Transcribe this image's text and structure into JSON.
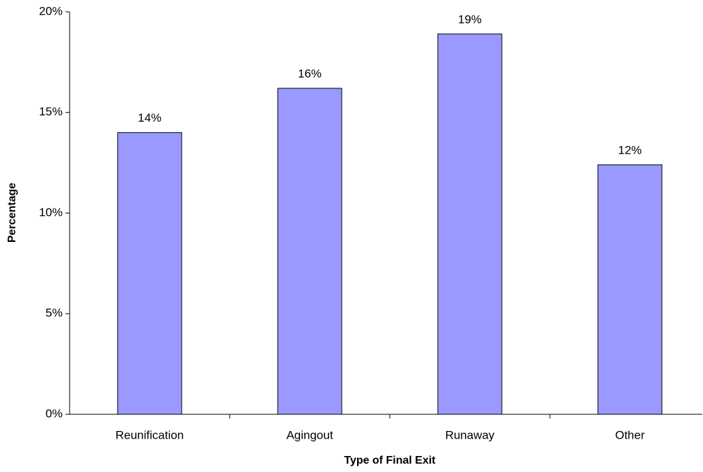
{
  "chart_data": {
    "type": "bar",
    "x_label": "Type of Final Exit",
    "y_label": "Percentage",
    "categories": [
      "Reunification",
      "Agingout",
      "Runaway",
      "Other"
    ],
    "values": [
      14.0,
      16.2,
      18.9,
      12.4
    ],
    "value_labels": [
      "14%",
      "16%",
      "19%",
      "12%"
    ],
    "color": "#9999ff",
    "ylim": [
      0,
      20
    ],
    "yticks": [
      {
        "value": 0,
        "label": "0%"
      },
      {
        "value": 5,
        "label": "5%"
      },
      {
        "value": 10,
        "label": "10%"
      },
      {
        "value": 15,
        "label": "15%"
      },
      {
        "value": 20,
        "label": "20%"
      }
    ],
    "grid": false
  }
}
